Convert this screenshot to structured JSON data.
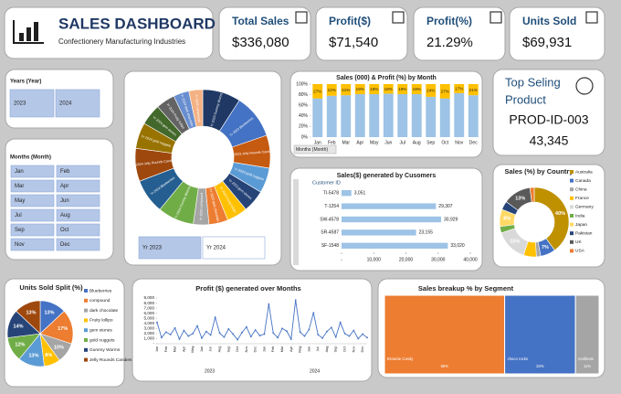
{
  "header": {
    "title": "SALES DASHBOARD",
    "subtitle": "Confectionery Manufacturing Industries"
  },
  "kpis": [
    {
      "label": "Total Sales",
      "value": "$336,080"
    },
    {
      "label": "Profit($)",
      "value": "$71,540"
    },
    {
      "label": "Profit(%)",
      "value": "21.29%"
    },
    {
      "label": "Units Sold",
      "value": "$69,931"
    }
  ],
  "top_product": {
    "title_lines": [
      "Top Seling",
      "Product"
    ],
    "product": "PROD-ID-003",
    "units": "43,345"
  },
  "slicers": [
    {
      "title": "Years (Year)",
      "items": [
        "2023",
        "2024"
      ]
    },
    {
      "title": "Months (Month)",
      "items": [
        "Jan",
        "Feb",
        "Mar",
        "Apr",
        "May",
        "Jun",
        "Jul",
        "Aug",
        "Sep",
        "Oct",
        "Nov",
        "Dec"
      ]
    },
    {
      "items": [
        "Yr 2023",
        "Yr 2024"
      ]
    }
  ],
  "chart_data": [
    {
      "type": "pie",
      "donut": true,
      "categories": [
        "Yr 2023 Gummy Worms",
        "Yr 2023 Blueberries",
        "Yr 2023 Jelly Rounds Candies",
        "Yr 2023 gold nuggets",
        "Yr 2023 gem stones",
        "Yr 2023 Fruity lollipo",
        "Yr 2023 dark chocolate",
        "Yr 2023 compound",
        "Yr 2024 Gummy Worms",
        "Yr 2024 Blueberries",
        "Yr 2024 Jelly Rounds Candies",
        "Yr 2024 gold nuggets",
        "Yr 2024 gem stones",
        "Yr 2024 Fruity lollipo",
        "Yr 2024 dark chocolate",
        "Yr 2024 compound"
      ],
      "values": [
        22000,
        25658,
        18961,
        14500,
        13000,
        12000,
        11000,
        9000,
        21000,
        20000,
        19000,
        15000,
        12229,
        11000,
        9000,
        8000
      ],
      "colors": [
        "#1f3864",
        "#4472c4",
        "#c55a11",
        "#5b9bd5",
        "#264478",
        "#ffc000",
        "#ed7d31",
        "#a5a5a5",
        "#70ad47",
        "#255e91",
        "#9e480e",
        "#997300",
        "#43682b",
        "#636363",
        "#698ed0",
        "#f4b183"
      ]
    },
    {
      "type": "bar",
      "stacked": true,
      "title": "Sales (000) & Profit (%) by Month",
      "categories": [
        "Jan",
        "Feb",
        "Mar",
        "Apr",
        "May",
        "Jun",
        "Jul",
        "Aug",
        "Sep",
        "Oct",
        "Nov",
        "Dec"
      ],
      "series": [
        {
          "color": "#9dc3e6",
          "values": [
            73,
            78,
            79,
            81,
            81,
            82,
            81,
            81,
            76,
            73,
            83,
            79
          ]
        },
        {
          "color": "#ffc000",
          "values": [
            27,
            22,
            21,
            19,
            19,
            18,
            19,
            19,
            24,
            27,
            17,
            21
          ],
          "value_labels": [
            "27%",
            "22%",
            "21%",
            "19%",
            "19%",
            "18%",
            "19%",
            "19%",
            "24%",
            "27%",
            "17%",
            "21%"
          ]
        }
      ],
      "ylim": [
        0,
        100
      ],
      "yticks": [
        {
          "value": 0,
          "label": "0%"
        },
        {
          "value": 20,
          "label": "20%"
        },
        {
          "value": 40,
          "label": "40%"
        },
        {
          "value": 60,
          "label": "60%"
        },
        {
          "value": 80,
          "label": "80%"
        },
        {
          "value": 100,
          "label": "100%"
        }
      ],
      "filter_button": "Months (Month)"
    },
    {
      "type": "hbar",
      "title": "Sales($) generated by Cusomers",
      "axis_label": "Customer ID",
      "categories": [
        "TI-5478",
        "T-1254",
        "SW-4578",
        "SR-4587",
        "SF-1548"
      ],
      "values": [
        3051,
        29307,
        30929,
        23155,
        33020
      ],
      "value_labels": [
        "3,051",
        "29,307",
        "30,929",
        "23,155",
        "33,020"
      ],
      "color": "#9dc3e6",
      "xlim": [
        0,
        40000
      ],
      "xticks": [
        {
          "value": 0,
          "label": "-"
        },
        {
          "value": 10000,
          "label": "10,000"
        },
        {
          "value": 20000,
          "label": "20,000"
        },
        {
          "value": 30000,
          "label": "30,000"
        },
        {
          "value": 40000,
          "label": "40,000"
        }
      ]
    },
    {
      "type": "pie",
      "donut": true,
      "title": "Sales (%) by Country",
      "categories": [
        "Australia",
        "Canada",
        "China",
        "France",
        "Germany",
        "India",
        "Japan",
        "Pakistan",
        "UK",
        "USA"
      ],
      "values": [
        40,
        7,
        2,
        6,
        15,
        3,
        8,
        4,
        13,
        2
      ],
      "value_labels": [
        "40%",
        "7%",
        null,
        null,
        "15%",
        null,
        "8%",
        null,
        "13%",
        null
      ],
      "colors": [
        "#bf9000",
        "#4472c4",
        "#a5a5a5",
        "#ffc000",
        "#d9d9d9",
        "#70ad47",
        "#ffd966",
        "#264478",
        "#595959",
        "#ed7d31"
      ],
      "legend": "right"
    },
    {
      "type": "pie",
      "donut": false,
      "title": "Units Sold Split (%)",
      "categories": [
        "Blueberries",
        "compound",
        "dark chocolate",
        "Fruity lollipo",
        "gem stones",
        "gold nuggets",
        "Gummy Worms",
        "Jelly Rounds Candies"
      ],
      "values": [
        13,
        17,
        10,
        8,
        13,
        12,
        14,
        13
      ],
      "value_labels": [
        "13%",
        "17%",
        "10%",
        "8%",
        "13%",
        "12%",
        "14%",
        "13%"
      ],
      "colors": [
        "#4472c4",
        "#ed7d31",
        "#a5a5a5",
        "#ffc000",
        "#5b9bd5",
        "#70ad47",
        "#264478",
        "#9e480e"
      ],
      "legend": "right"
    },
    {
      "type": "line",
      "title": "Profit ($) generated over Months",
      "color": "#4472c4",
      "categories": [
        "Jan",
        null,
        "Feb",
        null,
        "Mar",
        null,
        "Apr",
        null,
        "May",
        null,
        "Jun",
        null,
        "Jul",
        null,
        "Aug",
        null,
        "Sep",
        null,
        "Oct",
        null,
        "Nov",
        null,
        "Dec",
        null,
        "Jan",
        null,
        "Feb",
        null,
        "Mar",
        null,
        "Apr",
        null,
        "May",
        null,
        "Jun",
        null,
        "Jul",
        null,
        "Aug",
        null,
        "Sep",
        null,
        "Oct",
        null,
        "Nov",
        null,
        "Dec",
        null
      ],
      "values": [
        4200,
        1200,
        2300,
        1800,
        3100,
        900,
        2600,
        1500,
        2000,
        3500,
        1100,
        2400,
        1700,
        5200,
        2100,
        1300,
        2900,
        1900,
        800,
        2200,
        3300,
        1400,
        2700,
        1600,
        1900,
        7800,
        2100,
        1200,
        3000,
        2500,
        900,
        8600,
        2300,
        1500,
        2800,
        6100,
        1800,
        1100,
        2400,
        3200,
        1300,
        4200,
        2000,
        1500,
        2600,
        1000,
        1900,
        1200
      ],
      "years": [
        "2023",
        "2024"
      ],
      "ylim": [
        0,
        9000
      ],
      "yticks": [
        {
          "value": 0,
          "label": "-"
        },
        {
          "value": 1000,
          "label": "1,000"
        },
        {
          "value": 2000,
          "label": "2,000"
        },
        {
          "value": 3000,
          "label": "3,000"
        },
        {
          "value": 4000,
          "label": "4,000"
        },
        {
          "value": 5000,
          "label": "5,000"
        },
        {
          "value": 6000,
          "label": "6,000"
        },
        {
          "value": 7000,
          "label": "7,000"
        },
        {
          "value": 8000,
          "label": "8,000"
        },
        {
          "value": 9000,
          "label": "9,000"
        }
      ]
    },
    {
      "type": "treemap",
      "title": "Sales breakup % by Segment",
      "categories": [
        "Brownie Candy",
        "choco rocks",
        "confinets"
      ],
      "values": [
        56,
        33,
        11
      ],
      "value_labels": [
        "56%",
        "33%",
        "11%"
      ],
      "colors": [
        "#ed7d31",
        "#4472c4",
        "#a5a5a5"
      ]
    }
  ]
}
